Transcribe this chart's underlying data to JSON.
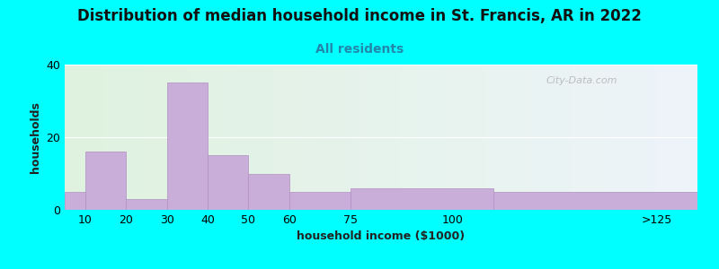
{
  "title": "Distribution of median household income in St. Francis, AR in 2022",
  "subtitle": "All residents",
  "xlabel": "household income ($1000)",
  "ylabel": "households",
  "background_color": "#00FFFF",
  "bar_color": "#c8aed8",
  "bar_edge_color": "#b090c0",
  "tick_labels": [
    "10",
    "20",
    "30",
    "40",
    "50",
    "60",
    "75",
    "100",
    ">125"
  ],
  "tick_positions": [
    10,
    20,
    30,
    40,
    50,
    60,
    75,
    100,
    150
  ],
  "bar_left_edges": [
    5,
    10,
    20,
    30,
    40,
    50,
    60,
    75,
    110
  ],
  "bar_right_edges": [
    10,
    20,
    30,
    40,
    50,
    60,
    75,
    110,
    160
  ],
  "values": [
    5,
    16,
    3,
    35,
    15,
    10,
    5,
    6,
    5
  ],
  "xlim": [
    5,
    160
  ],
  "ylim": [
    0,
    40
  ],
  "yticks": [
    0,
    20,
    40
  ],
  "title_fontsize": 12,
  "subtitle_fontsize": 10,
  "axis_label_fontsize": 9,
  "tick_fontsize": 9,
  "watermark_text": "City-Data.com"
}
